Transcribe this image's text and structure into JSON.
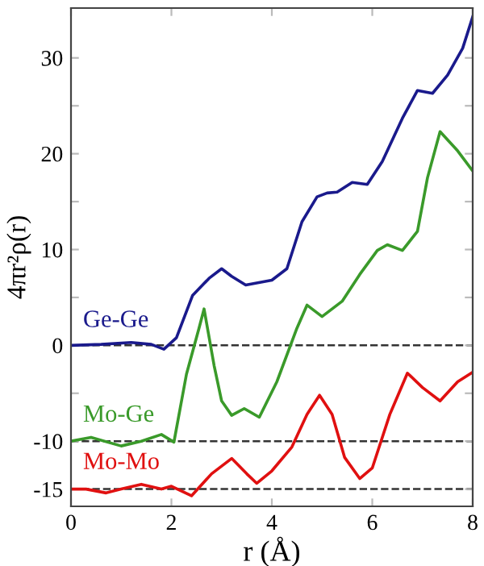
{
  "chart_data": {
    "type": "line",
    "xlabel": "r (Å)",
    "ylabel": "4πr²ρ(r)",
    "xlim": [
      0,
      8
    ],
    "xticks": [
      0,
      2,
      4,
      6,
      8
    ],
    "ylim": [
      -16.8,
      35.2
    ],
    "yticks": [
      {
        "value": -15,
        "label": "-15"
      },
      {
        "value": -10,
        "label": "-10"
      },
      {
        "value": -5,
        "label": null
      },
      0,
      {
        "value": 5,
        "label": null
      },
      10,
      {
        "value": 15,
        "label": null
      },
      20,
      {
        "value": 25,
        "label": null
      },
      30
    ],
    "legend": false,
    "grid": false,
    "line_style": "solid",
    "marker": "none",
    "ref_lines": [
      {
        "axis": "y",
        "value": 0,
        "color": "#333333",
        "line_style": "dashed"
      },
      {
        "axis": "y",
        "value": -10,
        "color": "#333333",
        "line_style": "dashed"
      },
      {
        "axis": "y",
        "value": -15,
        "color": "#333333",
        "line_style": "dashed"
      }
    ],
    "series": [
      {
        "name": "Ge-Ge",
        "color": "#1a1a8c",
        "x": [
          0,
          0.6,
          1.2,
          1.6,
          1.85,
          2.1,
          2.42,
          2.75,
          3.0,
          3.2,
          3.48,
          4.0,
          4.3,
          4.6,
          4.9,
          5.1,
          5.3,
          5.6,
          5.9,
          6.2,
          6.6,
          6.9,
          7.2,
          7.5,
          7.8,
          8
        ],
        "values": [
          0,
          0.1,
          0.3,
          0.1,
          -0.4,
          0.8,
          5.2,
          7.0,
          8.0,
          7.2,
          6.3,
          6.8,
          8.0,
          12.9,
          15.5,
          15.9,
          16.0,
          17.0,
          16.8,
          19.2,
          23.7,
          26.6,
          26.3,
          28.2,
          31.0,
          34.3
        ]
      },
      {
        "name": "Mo-Ge",
        "color": "#3a9a2a",
        "x": [
          0,
          0.4,
          1.0,
          1.4,
          1.8,
          2.05,
          2.3,
          2.55,
          2.65,
          2.85,
          3.0,
          3.2,
          3.45,
          3.75,
          4.1,
          4.5,
          4.7,
          5.0,
          5.4,
          5.75,
          6.1,
          6.3,
          6.6,
          6.9,
          7.1,
          7.35,
          7.7,
          8
        ],
        "values": [
          -10,
          -9.6,
          -10.5,
          -10,
          -9.3,
          -10.1,
          -3,
          1.8,
          3.8,
          -2.1,
          -5.8,
          -7.3,
          -6.6,
          -7.5,
          -3.8,
          1.8,
          4.2,
          3.0,
          4.6,
          7.4,
          9.9,
          10.5,
          9.9,
          11.9,
          17.5,
          22.3,
          20.3,
          18.2
        ]
      },
      {
        "name": "Mo-Mo",
        "color": "#e01010",
        "x": [
          0,
          0.3,
          0.7,
          1.0,
          1.4,
          1.8,
          2.0,
          2.4,
          2.8,
          3.2,
          3.5,
          3.7,
          4.0,
          4.4,
          4.7,
          4.95,
          5.2,
          5.45,
          5.75,
          6.0,
          6.35,
          6.7,
          7.0,
          7.35,
          7.7,
          8
        ],
        "values": [
          -15,
          -15,
          -15.4,
          -15,
          -14.5,
          -15,
          -14.7,
          -15.7,
          -13.4,
          -11.8,
          -13.4,
          -14.4,
          -13.1,
          -10.6,
          -7.2,
          -5.2,
          -7.2,
          -11.7,
          -13.9,
          -12.8,
          -7.2,
          -2.9,
          -4.4,
          -5.8,
          -3.8,
          -2.8
        ]
      }
    ]
  }
}
